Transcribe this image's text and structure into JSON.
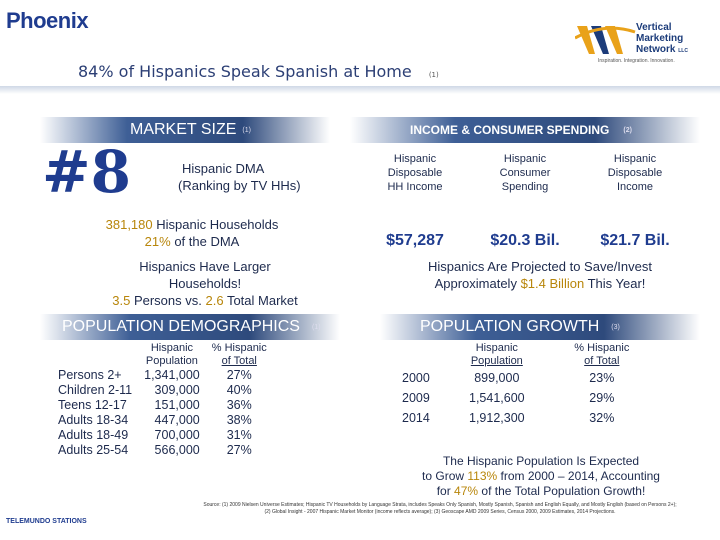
{
  "header": {
    "title": "Phoenix",
    "subtitle": "84% of Hispanics Speak Spanish at Home",
    "subtitle_note": "(1)"
  },
  "logo": {
    "line1": "Vertical",
    "line2": "Marketing",
    "line3": "Network",
    "suffix": "LLC",
    "tagline": "Inspiration. Integration. Innovation."
  },
  "market_size": {
    "heading": "MARKET SIZE",
    "note": "(1)",
    "rank": "#8",
    "dma_line1": "Hispanic DMA",
    "dma_line2": "(Ranking by TV HHs)",
    "hh_count": "381,180",
    "hh_label": "Hispanic Households",
    "hh_pct": "21%",
    "hh_pct_label": "of the DMA",
    "larger_line1": "Hispanics Have Larger",
    "larger_line2": "Households!",
    "persons_h": "3.5",
    "persons_mid": "Persons vs.",
    "persons_t": "2.6",
    "persons_end": "Total Market"
  },
  "income": {
    "heading": "INCOME & CONSUMER SPENDING",
    "note": "(2)",
    "columns": [
      {
        "l1": "Hispanic",
        "l2": "Disposable",
        "l3": "HH Income",
        "value": "$57,287"
      },
      {
        "l1": "Hispanic",
        "l2": "Consumer",
        "l3": "Spending",
        "value": "$20.3 Bil."
      },
      {
        "l1": "Hispanic",
        "l2": "Disposable",
        "l3": "Income",
        "value": "$21.7 Bil."
      }
    ],
    "proj_line1": "Hispanics Are Projected to Save/Invest",
    "proj_pre": "Approximately",
    "proj_amt": "$1.4 Billion",
    "proj_end": "This Year!"
  },
  "demographics": {
    "heading": "POPULATION DEMOGRAPHICS",
    "note": "(1)",
    "col1_l1": "Hispanic",
    "col1_l2": "Population",
    "col2_l1": "% Hispanic",
    "col2_l2": "of Total",
    "rows": [
      {
        "label": "Persons 2+",
        "pop": "1,341,000",
        "pct": "27%"
      },
      {
        "label": "Children 2-11",
        "pop": "309,000",
        "pct": "40%"
      },
      {
        "label": "Teens 12-17",
        "pop": "151,000",
        "pct": "36%"
      },
      {
        "label": "Adults 18-34",
        "pop": "447,000",
        "pct": "38%"
      },
      {
        "label": "Adults 18-49",
        "pop": "700,000",
        "pct": "31%"
      },
      {
        "label": "Adults 25-54",
        "pop": "566,000",
        "pct": "27%"
      }
    ]
  },
  "growth": {
    "heading": "POPULATION GROWTH",
    "note": "(3)",
    "col1_l1": "Hispanic",
    "col1_l2": "Population",
    "col2_l1": "% Hispanic",
    "col2_l2": "of Total",
    "rows": [
      {
        "year": "2000",
        "pop": "899,000",
        "pct": "23%"
      },
      {
        "year": "2009",
        "pop": "1,541,600",
        "pct": "29%"
      },
      {
        "year": "2014",
        "pop": "1,912,300",
        "pct": "32%"
      }
    ],
    "note_line1": "The Hispanic Population Is Expected",
    "note_pre": "to Grow",
    "note_pct": "113%",
    "note_mid": "from 2000 – 2014, Accounting",
    "note_pre2": "for",
    "note_pct2": "47%",
    "note_end": "of the Total Population Growth!"
  },
  "footer": {
    "source_line1": "Source: (1) 2009 Nielsen Universe Estimates; Hispanic TV Households by Language Strata, includes Speaks Only Spanish, Mostly Spanish, Spanish and English Equally, and Mostly English (based on Persons 2+);",
    "source_line2": "(2) Global Insight - 2007 Hispanic Market Monitor (income reflects average); (3) Geoscape AMD 2009 Series, Census 2000, 2009 Estimates, 2014 Projections.",
    "brand": "TELEMUNDO STATIONS"
  },
  "colors": {
    "accent": "#1f3c8f",
    "band": "#2e4a7c",
    "highlight": "#b8860b"
  }
}
